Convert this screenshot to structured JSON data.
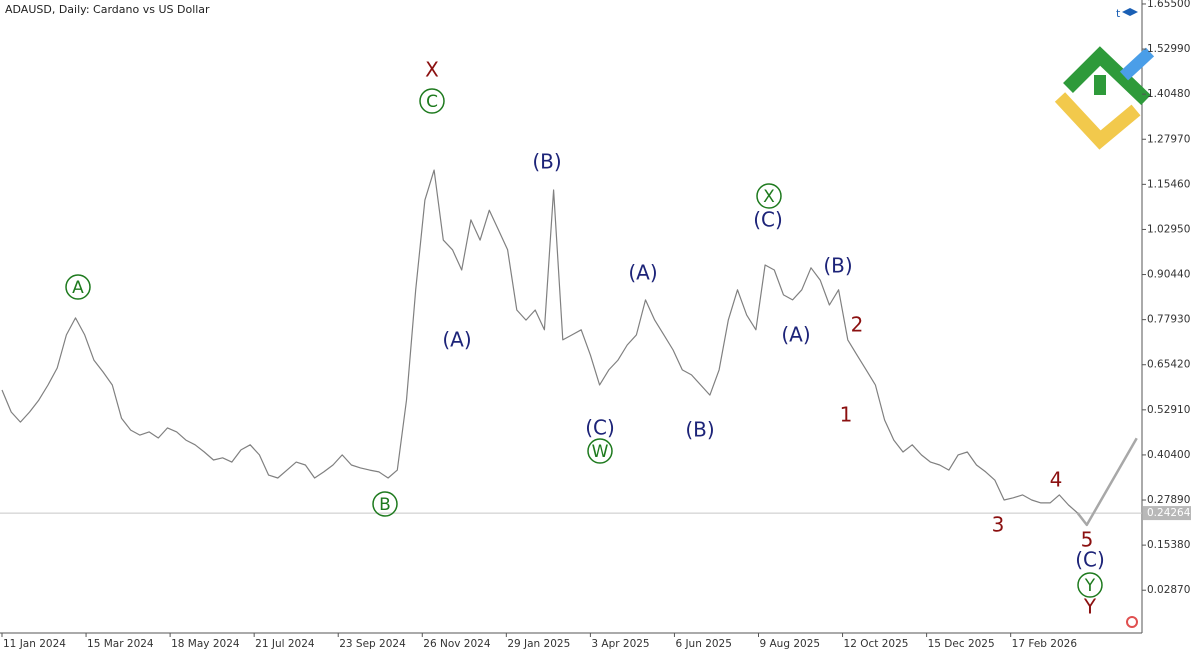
{
  "chart_data": {
    "type": "line",
    "title": "ADAUSD, Daily:  Cardano vs US Dollar",
    "xlim": [
      "2024-01-11",
      "2026-05-28"
    ],
    "ylim": [
      -0.09,
      1.666
    ],
    "xticks": [
      {
        "value": "2024-01-11",
        "label": "11 Jan 2024"
      },
      {
        "value": "2024-03-15",
        "label": "15 Mar 2024"
      },
      {
        "value": "2024-05-18",
        "label": "18 May 2024"
      },
      {
        "value": "2024-07-21",
        "label": "21 Jul 2024"
      },
      {
        "value": "2024-09-23",
        "label": "23 Sep 2024"
      },
      {
        "value": "2024-11-26",
        "label": "26 Nov 2024"
      },
      {
        "value": "2025-01-29",
        "label": "29 Jan 2025"
      },
      {
        "value": "2025-04-03",
        "label": "3 Apr 2025"
      },
      {
        "value": "2025-06-06",
        "label": "6 Jun 2025"
      },
      {
        "value": "2025-08-09",
        "label": "9 Aug 2025"
      },
      {
        "value": "2025-10-12",
        "label": "12 Oct 2025"
      },
      {
        "value": "2025-12-15",
        "label": "15 Dec 2025"
      },
      {
        "value": "2026-02-17",
        "label": "17 Feb 2026"
      }
    ],
    "yticks": [
      {
        "value": 1.655,
        "label": "1.65500"
      },
      {
        "value": 1.5299,
        "label": "1.52990"
      },
      {
        "value": 1.4048,
        "label": "1.40480"
      },
      {
        "value": 1.2797,
        "label": "1.27970"
      },
      {
        "value": 1.1546,
        "label": "1.15460"
      },
      {
        "value": 1.0295,
        "label": "1.02950"
      },
      {
        "value": 0.9044,
        "label": "0.90440"
      },
      {
        "value": 0.7793,
        "label": "0.77930"
      },
      {
        "value": 0.6542,
        "label": "0.65420"
      },
      {
        "value": 0.5291,
        "label": "0.52910"
      },
      {
        "value": 0.404,
        "label": "0.40400"
      },
      {
        "value": 0.2789,
        "label": "0.27890"
      },
      {
        "value": 0.1538,
        "label": "0.15380"
      },
      {
        "value": 0.0287,
        "label": "0.02870"
      }
    ],
    "current_price": {
      "value": 0.24264,
      "label": "0.24264"
    },
    "series": [
      {
        "color": "#808080",
        "x": [
          "2024-01-11",
          "2024-01-18",
          "2024-01-25",
          "2024-02-01",
          "2024-02-08",
          "2024-02-15",
          "2024-02-22",
          "2024-02-29",
          "2024-03-07",
          "2024-03-14",
          "2024-03-21",
          "2024-03-28",
          "2024-04-04",
          "2024-04-11",
          "2024-04-18",
          "2024-04-25",
          "2024-05-02",
          "2024-05-09",
          "2024-05-16",
          "2024-05-23",
          "2024-05-30",
          "2024-06-06",
          "2024-06-13",
          "2024-06-20",
          "2024-06-27",
          "2024-07-04",
          "2024-07-11",
          "2024-07-18",
          "2024-07-25",
          "2024-08-01",
          "2024-08-08",
          "2024-08-15",
          "2024-08-22",
          "2024-08-29",
          "2024-09-05",
          "2024-09-12",
          "2024-09-19",
          "2024-09-26",
          "2024-10-03",
          "2024-10-10",
          "2024-10-17",
          "2024-10-24",
          "2024-10-31",
          "2024-11-07",
          "2024-11-14",
          "2024-11-21",
          "2024-11-28",
          "2024-12-05",
          "2024-12-12",
          "2024-12-19",
          "2024-12-26",
          "2025-01-02",
          "2025-01-09",
          "2025-01-16",
          "2025-01-23",
          "2025-01-30",
          "2025-02-06",
          "2025-02-13",
          "2025-02-20",
          "2025-02-27",
          "2025-03-06",
          "2025-03-13",
          "2025-03-20",
          "2025-03-27",
          "2025-04-03",
          "2025-04-10",
          "2025-04-17",
          "2025-04-24",
          "2025-05-01",
          "2025-05-08",
          "2025-05-15",
          "2025-05-22",
          "2025-05-29",
          "2025-06-05",
          "2025-06-12",
          "2025-06-19",
          "2025-06-26",
          "2025-07-03",
          "2025-07-10",
          "2025-07-17",
          "2025-07-24",
          "2025-07-31",
          "2025-08-07",
          "2025-08-14",
          "2025-08-21",
          "2025-08-28",
          "2025-09-04",
          "2025-09-11",
          "2025-09-18",
          "2025-09-25",
          "2025-10-02",
          "2025-10-09",
          "2025-10-16",
          "2025-10-23",
          "2025-10-30",
          "2025-11-06",
          "2025-11-13",
          "2025-11-20",
          "2025-11-27",
          "2025-12-04",
          "2025-12-11",
          "2025-12-18",
          "2025-12-25",
          "2026-01-01",
          "2026-01-08",
          "2026-01-15",
          "2026-01-22",
          "2026-01-29",
          "2026-02-05",
          "2026-02-12",
          "2026-02-19",
          "2026-02-26",
          "2026-03-05",
          "2026-03-12",
          "2026-03-19",
          "2026-03-26",
          "2026-04-02",
          "2026-04-09"
        ],
        "values": [
          0.584,
          0.523,
          0.495,
          0.523,
          0.556,
          0.598,
          0.645,
          0.737,
          0.784,
          0.737,
          0.667,
          0.634,
          0.598,
          0.506,
          0.473,
          0.459,
          0.468,
          0.451,
          0.479,
          0.468,
          0.445,
          0.432,
          0.412,
          0.39,
          0.396,
          0.384,
          0.418,
          0.432,
          0.404,
          0.348,
          0.34,
          0.362,
          0.384,
          0.376,
          0.34,
          0.357,
          0.376,
          0.404,
          0.376,
          0.368,
          0.362,
          0.357,
          0.34,
          0.362,
          0.556,
          0.862,
          1.111,
          1.194,
          1.0,
          0.973,
          0.917,
          1.056,
          1.0,
          1.083,
          1.028,
          0.973,
          0.806,
          0.778,
          0.806,
          0.751,
          1.139,
          0.723,
          0.737,
          0.751,
          0.681,
          0.598,
          0.64,
          0.667,
          0.709,
          0.737,
          0.834,
          0.778,
          0.737,
          0.695,
          0.64,
          0.626,
          0.598,
          0.57,
          0.64,
          0.778,
          0.862,
          0.792,
          0.751,
          0.931,
          0.917,
          0.848,
          0.834,
          0.862,
          0.923,
          0.889,
          0.82,
          0.862,
          0.723,
          0.681,
          0.64,
          0.598,
          0.501,
          0.445,
          0.412,
          0.432,
          0.404,
          0.384,
          0.376,
          0.362,
          0.404,
          0.412,
          0.376,
          0.357,
          0.334,
          0.279,
          0.285,
          0.293,
          0.279,
          0.271,
          0.271,
          0.293,
          0.265,
          0.243
        ]
      },
      {
        "color": "#a8a8a8",
        "x": [
          "2026-04-09",
          "2026-04-16",
          "2026-05-24"
        ],
        "values": [
          0.243,
          0.21,
          0.45
        ]
      }
    ],
    "annotations": [
      {
        "text": "X",
        "color": "#8b1010",
        "circled": false
      },
      {
        "text": "C",
        "color": "#1e7a1e",
        "circled": true
      },
      {
        "text": "A",
        "color": "#1e7a1e",
        "circled": true
      },
      {
        "text": "B",
        "color": "#1e7a1e",
        "circled": true
      },
      {
        "text": "(A)",
        "color": "#1c2378",
        "circled": false
      },
      {
        "text": "(B)",
        "color": "#1c2378",
        "circled": false
      },
      {
        "text": "(C)",
        "color": "#1c2378",
        "circled": false
      },
      {
        "text": "W",
        "color": "#1e7a1e",
        "circled": true
      },
      {
        "text": "(A)",
        "color": "#1c2378",
        "circled": false
      },
      {
        "text": "(B)",
        "color": "#1c2378",
        "circled": false
      },
      {
        "text": "X",
        "color": "#1e7a1e",
        "circled": true
      },
      {
        "text": "(C)",
        "color": "#1c2378",
        "circled": false
      },
      {
        "text": "(A)",
        "color": "#1c2378",
        "circled": false
      },
      {
        "text": "(B)",
        "color": "#1c2378",
        "circled": false
      },
      {
        "text": "2",
        "color": "#8b1010",
        "circled": false
      },
      {
        "text": "1",
        "color": "#8b1010",
        "circled": false
      },
      {
        "text": "3",
        "color": "#8b1010",
        "circled": false
      },
      {
        "text": "4",
        "color": "#8b1010",
        "circled": false
      },
      {
        "text": "5",
        "color": "#8b1010",
        "circled": false
      },
      {
        "text": "(C)",
        "color": "#1c2378",
        "circled": false
      },
      {
        "text": "Y",
        "color": "#1e7a1e",
        "circled": true
      },
      {
        "text": "Y",
        "color": "#8b1010",
        "circled": false
      }
    ]
  }
}
